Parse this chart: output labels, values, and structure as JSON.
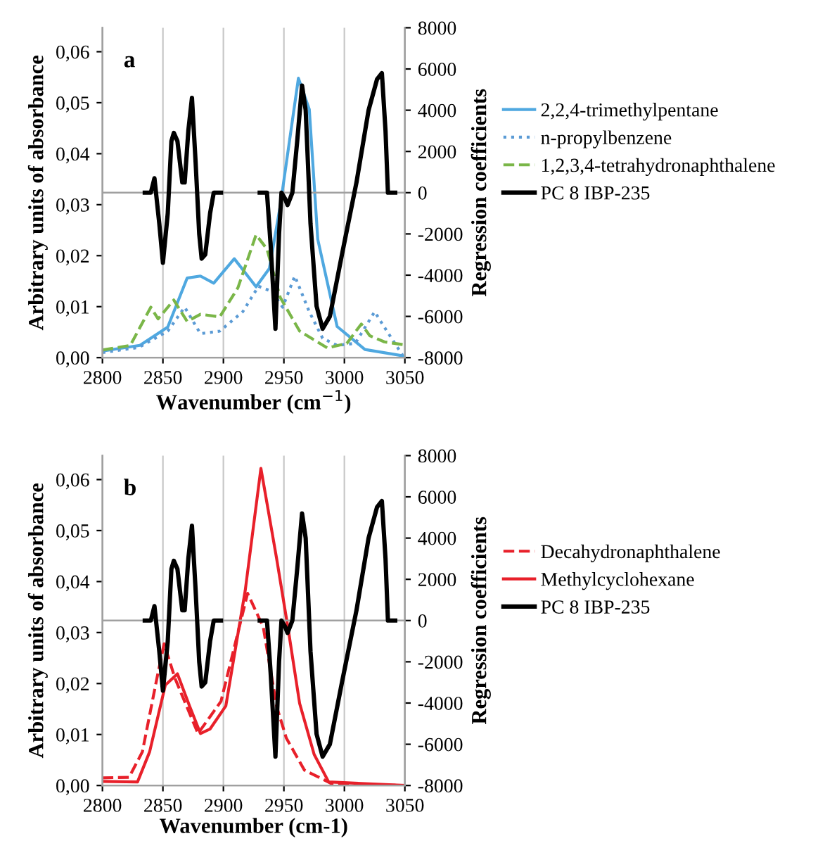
{
  "chart_data": [
    {
      "type": "line",
      "annotations": [
        "a"
      ],
      "xlabel": "Wavenumber (cm$^{−1}$)",
      "ylabel": "Arbitrary units of absorbance",
      "y2label": "Regression coefficients",
      "xlim": [
        2800,
        3050
      ],
      "xticks": [
        2800,
        2850,
        2900,
        2950,
        3000,
        3050
      ],
      "ylim": [
        0,
        0.0647
      ],
      "yticks": [
        {
          "value": 0,
          "label": "0,00"
        },
        {
          "value": 0.01,
          "label": "0,01"
        },
        {
          "value": 0.02,
          "label": "0,02"
        },
        {
          "value": 0.03,
          "label": "0,03"
        },
        {
          "value": 0.04,
          "label": "0,04"
        },
        {
          "value": 0.05,
          "label": "0,05"
        },
        {
          "value": 0.06,
          "label": "0,06"
        }
      ],
      "y2lim": [
        -8000,
        8000
      ],
      "y2ticks": [
        -8000,
        -6000,
        -4000,
        -2000,
        0,
        2000,
        4000,
        6000,
        8000
      ],
      "grid": "x",
      "legend": "right",
      "ref_lines": [
        {
          "axis": "y2",
          "value": 0,
          "color": "#a0a0a0"
        }
      ],
      "series": [
        {
          "name": "2,2,4-trimethylpentane",
          "color": "#4fa8e0",
          "line_style": "solid",
          "x": [
            2800,
            2831,
            2854,
            2870,
            2881,
            2892,
            2909,
            2927,
            2938,
            2947,
            2962,
            2971,
            2978,
            2994,
            3017,
            3050
          ],
          "values": [
            0.0013,
            0.0024,
            0.006,
            0.0156,
            0.016,
            0.0146,
            0.0194,
            0.0139,
            0.0175,
            0.0298,
            0.0548,
            0.0487,
            0.0232,
            0.0061,
            0.0016,
            0.0003
          ]
        },
        {
          "name": "n-propylbenzene",
          "color": "#5b9bd5",
          "line_style": "dotted",
          "x": [
            2800,
            2830,
            2854,
            2868,
            2881,
            2897,
            2916,
            2929,
            2940,
            2949,
            2959,
            2971,
            2982,
            2994,
            3009,
            3025,
            3033,
            3048
          ],
          "values": [
            0.001,
            0.002,
            0.0052,
            0.0099,
            0.0047,
            0.0052,
            0.009,
            0.014,
            0.013,
            0.0099,
            0.016,
            0.009,
            0.0038,
            0.0024,
            0.0028,
            0.009,
            0.006,
            0.0005
          ]
        },
        {
          "name": "1,2,3,4-tetrahydronaphthalene",
          "color": "#7ab648",
          "line_style": "dashed",
          "x": [
            2800,
            2823,
            2840,
            2846,
            2859,
            2870,
            2881,
            2897,
            2912,
            2927,
            2936,
            2947,
            2963,
            2986,
            3002,
            3014,
            3021,
            3033,
            3050
          ],
          "values": [
            0.0015,
            0.0024,
            0.0099,
            0.0076,
            0.0113,
            0.0071,
            0.0085,
            0.008,
            0.0137,
            0.0241,
            0.0213,
            0.0118,
            0.0052,
            0.0019,
            0.0028,
            0.0066,
            0.0043,
            0.0031,
            0.0025
          ]
        },
        {
          "name": "PC 8 IBP-235",
          "color": "#000000",
          "line_style": "solid",
          "axis": "y2",
          "x": [
            2835,
            2840,
            2843,
            2847,
            2850,
            2854,
            2857,
            2859,
            2862,
            2866,
            2868,
            2871,
            2874,
            2877,
            2880,
            2882,
            2885,
            2889,
            2892,
            2898,
            2914,
            2930,
            2936,
            2939,
            2943,
            2946,
            2948,
            2951,
            2953,
            2957,
            2961,
            2965,
            2968,
            2972,
            2977,
            2982,
            2988,
            2998,
            3010,
            3020,
            3027,
            3031,
            3034,
            3036,
            3042
          ],
          "values": [
            0,
            0,
            700,
            -1500,
            -3400,
            -1000,
            2500,
            2900,
            2500,
            500,
            500,
            3000,
            4600,
            1500,
            -2000,
            -3200,
            -3000,
            -1000,
            0,
            0,
            null,
            0,
            0,
            -2500,
            -6600,
            -2000,
            0,
            -300,
            -600,
            0,
            2500,
            5200,
            4000,
            -1500,
            -5500,
            -6600,
            -6000,
            -3000,
            500,
            4000,
            5500,
            5800,
            3000,
            0,
            0
          ]
        }
      ]
    },
    {
      "type": "line",
      "annotations": [
        "b"
      ],
      "xlabel": "Wavenumber (cm-1)",
      "ylabel": "Arbitrary units of absorbance",
      "y2label": "Regression coefficients",
      "xlim": [
        2800,
        3050
      ],
      "xticks": [
        2800,
        2850,
        2900,
        2950,
        3000,
        3050
      ],
      "ylim": [
        0,
        0.0647
      ],
      "yticks": [
        {
          "value": 0,
          "label": "0,00"
        },
        {
          "value": 0.01,
          "label": "0,01"
        },
        {
          "value": 0.02,
          "label": "0,02"
        },
        {
          "value": 0.03,
          "label": "0,03"
        },
        {
          "value": 0.04,
          "label": "0,04"
        },
        {
          "value": 0.05,
          "label": "0,05"
        },
        {
          "value": 0.06,
          "label": "0,06"
        }
      ],
      "y2lim": [
        -8000,
        8000
      ],
      "y2ticks": [
        -8000,
        -6000,
        -4000,
        -2000,
        0,
        2000,
        4000,
        6000,
        8000
      ],
      "grid": "x",
      "legend": "right",
      "ref_lines": [
        {
          "axis": "y2",
          "value": 0,
          "color": "#a0a0a0"
        }
      ],
      "series": [
        {
          "name": "Decahydronaphthalene",
          "color": "#e8202a",
          "line_style": "dashed",
          "x": [
            2800,
            2822,
            2833,
            2845,
            2851,
            2860,
            2879,
            2898,
            2920,
            2933,
            2944,
            2952,
            2967,
            2990,
            3050
          ],
          "values": [
            0.0015,
            0.0016,
            0.0066,
            0.021,
            0.0278,
            0.021,
            0.0102,
            0.0165,
            0.0377,
            0.031,
            0.0155,
            0.0093,
            0.003,
            0.0003,
            0
          ]
        },
        {
          "name": "Methylcyclohexane",
          "color": "#e8202a",
          "line_style": "solid",
          "x": [
            2800,
            2829,
            2839,
            2852,
            2862,
            2872,
            2881,
            2889,
            2902,
            2918,
            2931,
            2944,
            2954,
            2963,
            2975,
            2987,
            3050
          ],
          "values": [
            0.0008,
            0.0007,
            0.0066,
            0.0197,
            0.0219,
            0.0156,
            0.0102,
            0.0111,
            0.0156,
            0.0382,
            0.0622,
            0.0445,
            0.03,
            0.0161,
            0.0061,
            0.0007,
            0
          ]
        },
        {
          "name": "PC 8 IBP-235",
          "color": "#000000",
          "line_style": "solid",
          "axis": "y2",
          "x": [
            2835,
            2840,
            2843,
            2847,
            2850,
            2854,
            2857,
            2859,
            2862,
            2866,
            2868,
            2871,
            2874,
            2877,
            2880,
            2882,
            2885,
            2889,
            2892,
            2898,
            2914,
            2930,
            2936,
            2939,
            2943,
            2946,
            2948,
            2951,
            2953,
            2957,
            2961,
            2965,
            2968,
            2972,
            2977,
            2982,
            2988,
            2998,
            3010,
            3020,
            3027,
            3031,
            3034,
            3036,
            3042
          ],
          "values": [
            0,
            0,
            700,
            -1500,
            -3400,
            -1000,
            2500,
            2900,
            2500,
            500,
            500,
            3000,
            4600,
            1500,
            -2000,
            -3200,
            -3000,
            -1000,
            0,
            0,
            null,
            0,
            0,
            -2500,
            -6600,
            -2000,
            0,
            -300,
            -600,
            0,
            2500,
            5200,
            4000,
            -1500,
            -5500,
            -6600,
            -6000,
            -3000,
            500,
            4000,
            5500,
            5800,
            3000,
            0,
            0
          ]
        }
      ]
    }
  ]
}
